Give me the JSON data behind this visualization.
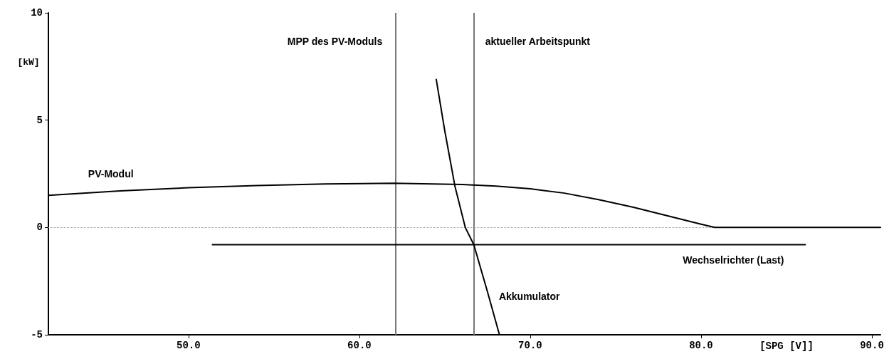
{
  "chart_data": {
    "type": "line",
    "xlabel": "[SPG [V]]",
    "ylabel": "[kW]",
    "xlim": [
      41.8,
      90.5
    ],
    "xticks": [
      {
        "value": 50,
        "label": "50.0"
      },
      {
        "value": 60,
        "label": "60.0"
      },
      {
        "value": 70,
        "label": "70.0"
      },
      {
        "value": 80,
        "label": "80.0"
      },
      {
        "value": 90,
        "label": "90.0"
      }
    ],
    "ylim": [
      -5,
      10
    ],
    "yticks": [
      -5,
      0,
      5,
      10
    ],
    "grid": false,
    "legend": false,
    "marker": "none",
    "line_style": "solid",
    "series": [
      {
        "name": "PV-Modul",
        "color": "#000000",
        "x": [
          41.8,
          46,
          50,
          54,
          58,
          62,
          66,
          68,
          70,
          72,
          74,
          76,
          78,
          80,
          80.8,
          90.5
        ],
        "values": [
          1.5,
          1.7,
          1.85,
          1.95,
          2.03,
          2.06,
          2.0,
          1.93,
          1.8,
          1.6,
          1.3,
          0.95,
          0.55,
          0.15,
          0,
          0
        ]
      },
      {
        "name": "Akkumulator",
        "color": "#000000",
        "x": [
          64.5,
          65.0,
          65.6,
          66.2,
          66.7,
          67.5,
          68.2
        ],
        "values": [
          6.9,
          4.5,
          1.9,
          0,
          -0.8,
          -3.0,
          -5
        ]
      },
      {
        "name": "Wechselrichter (Last)",
        "color": "#000000",
        "x": [
          51.4,
          86.1
        ],
        "values": [
          -0.8,
          -0.8
        ]
      }
    ],
    "ref_lines": [
      {
        "axis": "x",
        "value": 62.1,
        "label": "MPP des PV-Moduls",
        "color": "#777777",
        "line_style": "solid"
      },
      {
        "axis": "x",
        "value": 66.7,
        "label": "aktueller Arbeitspunkt",
        "color": "#777777",
        "line_style": "solid"
      },
      {
        "axis": "y",
        "value": 0,
        "label": null,
        "color": "#999999",
        "line_style": "dotted"
      }
    ]
  }
}
